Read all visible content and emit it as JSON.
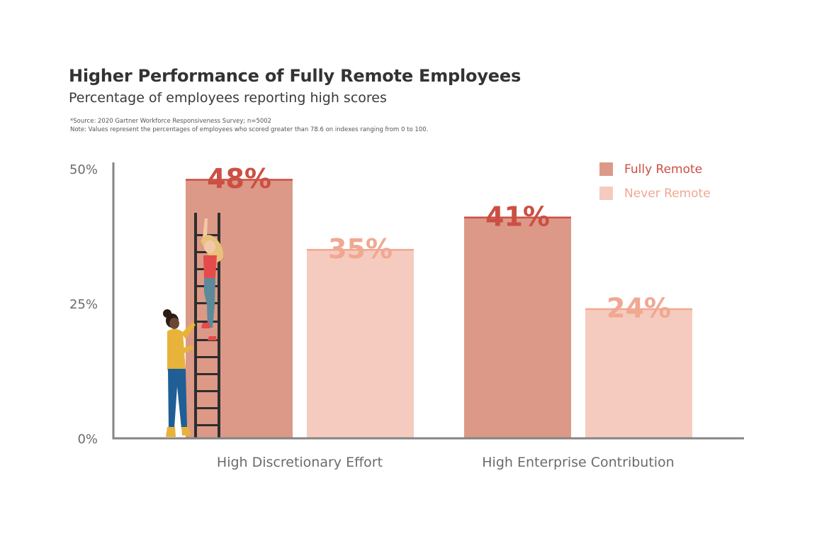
{
  "title": "Higher Performance of Fully Remote Employees",
  "subtitle": "Percentage of employees reporting high scores",
  "notes": [
    "*Source: 2020 Gartner Workforce Responsiveness Survey; n=5002",
    "Note: Values represent the percentages of employees who scored greater than 78.6 on indexes ranging from 0 to 100."
  ],
  "colors": {
    "fully_remote_bar": "#dc9987",
    "fully_remote_text": "#cc4f43",
    "never_remote_bar": "#f5cbbf",
    "never_remote_text": "#f0a892",
    "axis": "#858585"
  },
  "illustration": "two-women-climbing-ladder",
  "chart_data": {
    "type": "bar",
    "categories": [
      "High Discretionary Effort",
      "High Enterprise Contribution"
    ],
    "series": [
      {
        "name": "Fully Remote",
        "values": [
          48,
          41
        ],
        "labels": [
          "48%",
          "41%"
        ]
      },
      {
        "name": "Never Remote",
        "values": [
          35,
          24
        ],
        "labels": [
          "35%",
          "24%"
        ]
      }
    ],
    "ylim": [
      0,
      50
    ],
    "yticks": [
      0,
      25,
      50
    ],
    "ytick_labels": [
      "0%",
      "25%",
      "50%"
    ],
    "legend_position": "top-right",
    "grid": false
  }
}
